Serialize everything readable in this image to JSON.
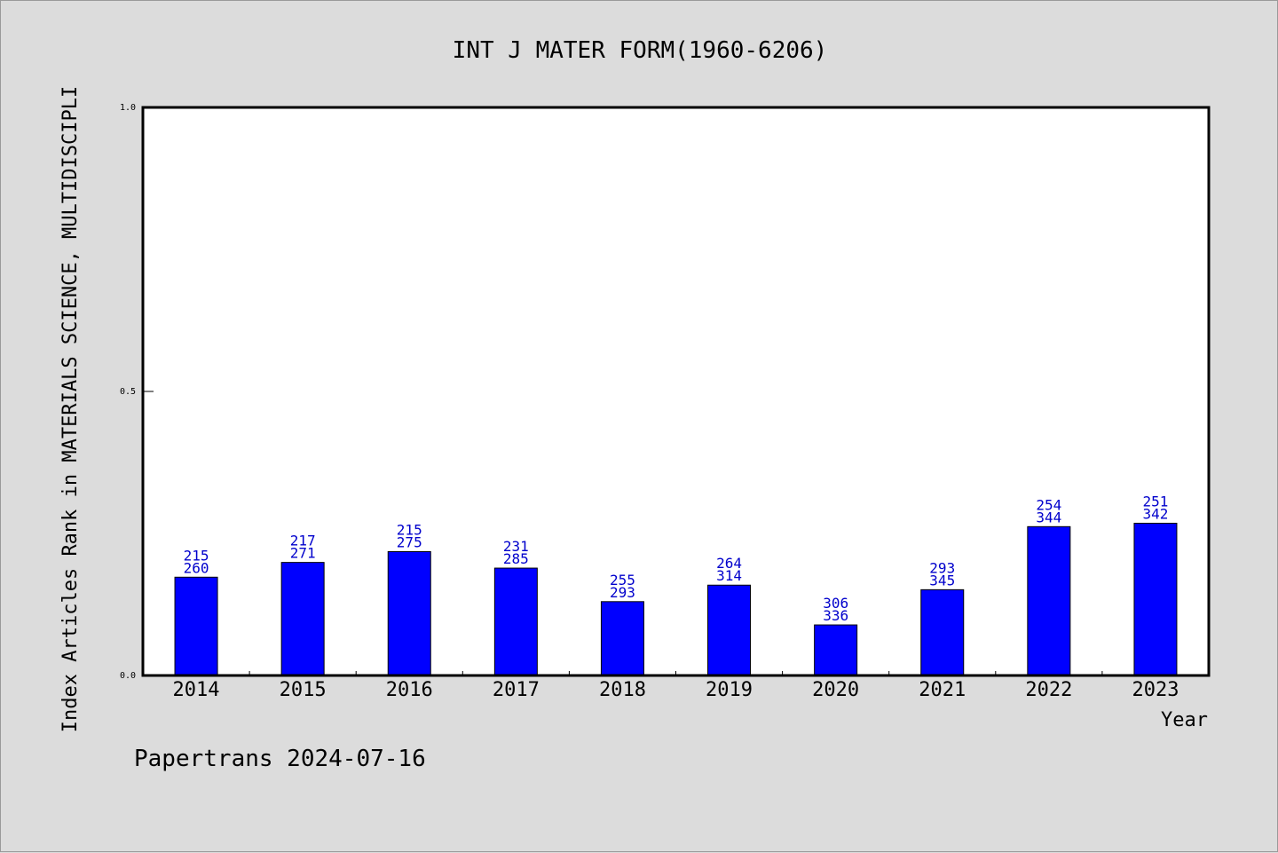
{
  "chart_data": {
    "type": "bar",
    "title": "INT J MATER FORM(1960-6206)",
    "xlabel": "Year",
    "ylabel": "Index Articles Rank in MATERIALS SCIENCE, MULTIDISCIPLI",
    "categories": [
      "2014",
      "2015",
      "2016",
      "2017",
      "2018",
      "2019",
      "2020",
      "2021",
      "2022",
      "2023"
    ],
    "values": [
      0.173,
      0.199,
      0.218,
      0.189,
      0.13,
      0.159,
      0.089,
      0.151,
      0.262,
      0.268
    ],
    "labels_top": [
      "215",
      "217",
      "215",
      "231",
      "255",
      "264",
      "306",
      "293",
      "254",
      "251"
    ],
    "labels_bottom": [
      "260",
      "271",
      "275",
      "285",
      "293",
      "314",
      "336",
      "345",
      "344",
      "342"
    ],
    "ylim": [
      0,
      1.0
    ],
    "yticks": [
      "0.0",
      "0.5",
      "1.0"
    ],
    "bar_color": "#0000ff",
    "label_color": "#0000cc",
    "grid": false
  },
  "footer": "Papertrans 2024-07-16"
}
